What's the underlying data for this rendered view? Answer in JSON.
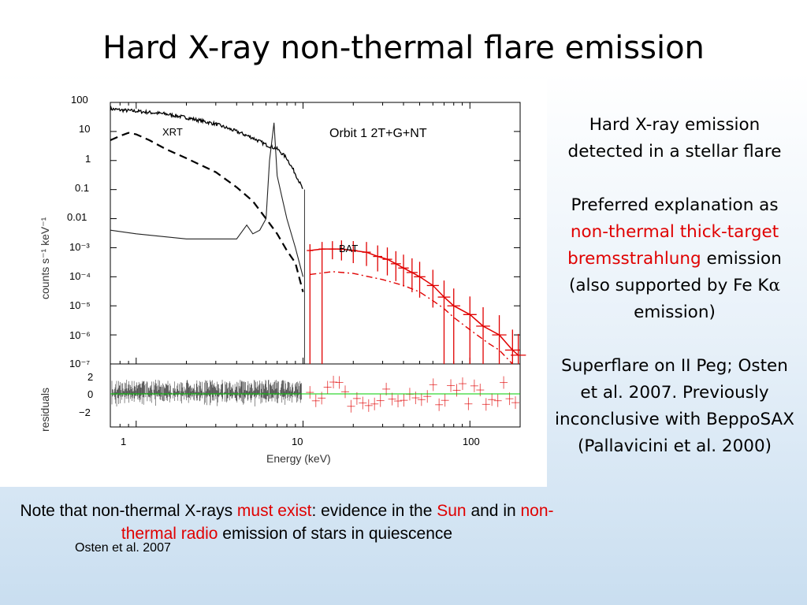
{
  "slide": {
    "title": "Hard X-ray non-thermal flare emission",
    "credit": "Osten et al. 2007",
    "side": {
      "p1": "Hard X-ray emission detected in a stellar flare",
      "p2_pre": "Preferred explanation as ",
      "p2_red": "non-thermal thick-target bremsstrahlung",
      "p2_post": " emission (also supported by Fe K",
      "p2_alpha": "α",
      "p2_end": " emission)",
      "p3": "Superflare on II Peg; Osten et al. 2007. Previously inconclusive with BeppoSAX (Pallavicini et al. 2000)"
    },
    "note": {
      "t1": "Note that non-thermal X-rays ",
      "r1": "must exist",
      "t2": ": evidence in the ",
      "r2": "Sun",
      "t3": " and in ",
      "r3": "non-thermal radio",
      "t4": " emission of stars in quiescence"
    }
  },
  "chart_data": {
    "type": "line",
    "annotation": "Orbit 1 2T+G+NT",
    "xlabel": "Energy (keV)",
    "ylabel": "counts s⁻¹ keV⁻¹",
    "residual_label": "residuals",
    "xscale": "log",
    "yscale": "log",
    "xlim": [
      0.7,
      200
    ],
    "ylim": [
      1e-07,
      100
    ],
    "x_ticks": [
      "1",
      "10",
      "100"
    ],
    "y_ticks": [
      "100",
      "10",
      "1",
      "0.1",
      "0.01",
      "10⁻³",
      "10⁻⁴",
      "10⁻⁵",
      "10⁻⁶",
      "10⁻⁷"
    ],
    "residual_ticks": [
      "2",
      "0",
      "−2"
    ],
    "colors": {
      "xrt": "#000000",
      "bat": "#e00000",
      "residual_zero": "#00cc00"
    },
    "series": [
      {
        "name": "XRT",
        "x": [
          0.7,
          0.8,
          1,
          1.5,
          2,
          3,
          4,
          5,
          6,
          7,
          8,
          9,
          10
        ],
        "y": [
          60,
          55,
          50,
          40,
          30,
          18,
          10,
          6,
          3.5,
          2.5,
          1.2,
          0.35,
          0.1
        ]
      },
      {
        "x": [
          0.7,
          0.8,
          0.9,
          1,
          1.2,
          1.5,
          2,
          3,
          4,
          5,
          6,
          7,
          8,
          9,
          10
        ],
        "y": [
          5,
          7,
          9,
          8,
          5,
          2.5,
          1.2,
          0.4,
          0.12,
          0.04,
          0.01,
          0.003,
          0.0008,
          0.0003,
          3e-05
        ]
      },
      {
        "x": [
          0.7,
          1,
          2,
          3,
          4,
          4.6,
          5,
          5.5,
          6,
          6.3,
          6.7,
          7,
          7.5,
          8,
          9,
          10
        ],
        "y": [
          0.004,
          0.003,
          0.002,
          0.002,
          0.002,
          0.006,
          0.003,
          0.004,
          0.01,
          1,
          20,
          0.3,
          0.05,
          0.01,
          0.001,
          0.0001
        ]
      },
      {
        "name": "BAT",
        "x": [
          11,
          13,
          15,
          17,
          20,
          24,
          28,
          32,
          36,
          40,
          45,
          50,
          60,
          70,
          80,
          100,
          120,
          150,
          180,
          195
        ],
        "y": [
          0.0008,
          0.0009,
          0.0009,
          0.0009,
          0.0008,
          0.0007,
          0.0005,
          0.0004,
          0.00028,
          0.0002,
          0.00014,
          0.0001,
          5e-05,
          2e-05,
          1e-05,
          5e-06,
          2e-06,
          1e-06,
          3e-07,
          2e-07
        ]
      },
      {
        "x": [
          11,
          15,
          20,
          30,
          40,
          50,
          60,
          70,
          80,
          100,
          130,
          150,
          180
        ],
        "y": [
          0.00012,
          0.00015,
          0.00013,
          8e-05,
          5e-05,
          3e-05,
          1.5e-05,
          8e-06,
          4e-06,
          1.5e-06,
          5e-07,
          3e-07,
          1e-07
        ]
      }
    ]
  }
}
